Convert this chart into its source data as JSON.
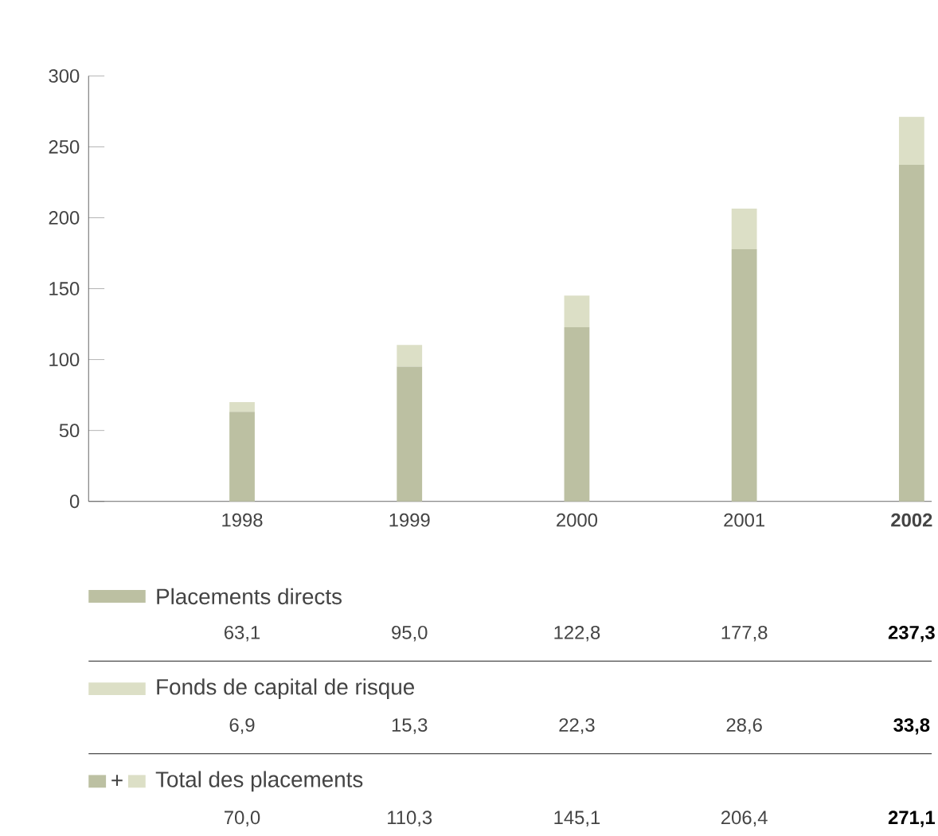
{
  "chart_data": {
    "type": "bar",
    "stacked": true,
    "categories": [
      "1998",
      "1999",
      "2000",
      "2001",
      "2002"
    ],
    "ylim": [
      0,
      300
    ],
    "yticks": [
      0,
      50,
      100,
      150,
      200,
      250,
      300
    ],
    "legend": "bottom",
    "series": [
      {
        "name": "Placements directs",
        "color": "#bcc0a2",
        "values": [
          63.1,
          95.0,
          122.8,
          177.8,
          237.3
        ],
        "value_labels": [
          "63,1",
          "95,0",
          "122,8",
          "177,8",
          "237,3"
        ]
      },
      {
        "name": "Fonds de capital de risque",
        "color": "#dcdfc6",
        "values": [
          6.9,
          15.3,
          22.3,
          28.6,
          33.8
        ],
        "value_labels": [
          "6,9",
          "15,3",
          "22,3",
          "28,6",
          "33,8"
        ]
      }
    ],
    "annotations": [
      "+",
      "Total des placements",
      "70,0",
      "110,3",
      "145,1",
      "206,4",
      "271,1"
    ]
  }
}
